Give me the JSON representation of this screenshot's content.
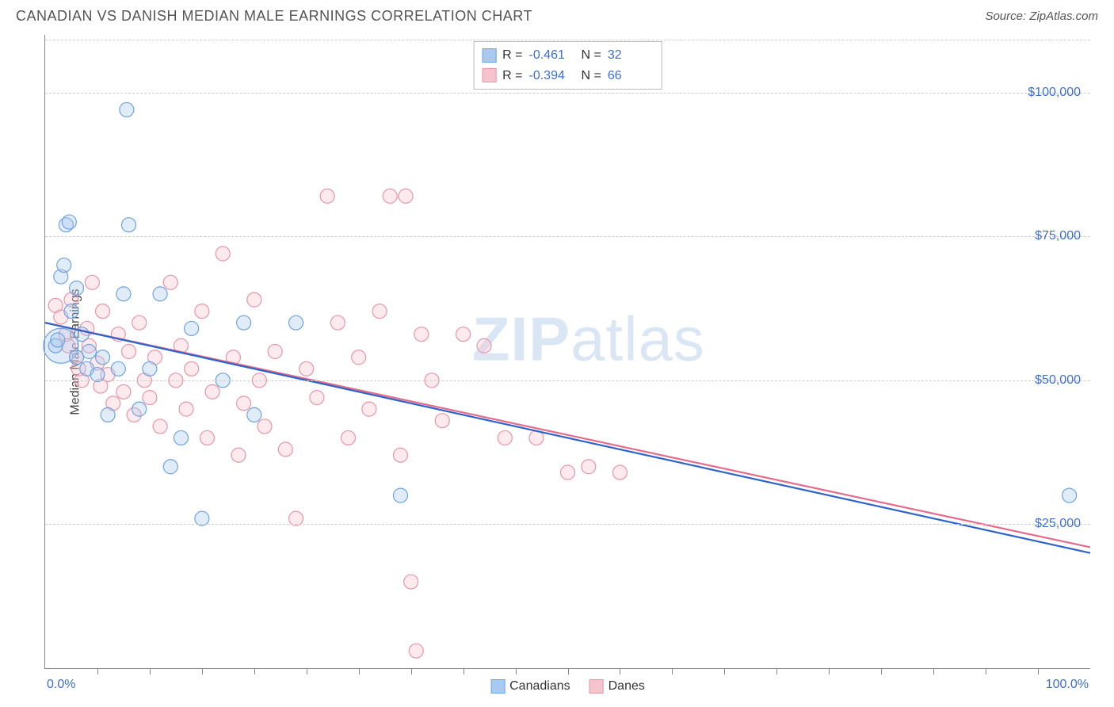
{
  "header": {
    "title": "CANADIAN VS DANISH MEDIAN MALE EARNINGS CORRELATION CHART",
    "source": "Source: ZipAtlas.com"
  },
  "chart": {
    "type": "scatter",
    "ylabel": "Median Male Earnings",
    "xlim": [
      0,
      100
    ],
    "ylim": [
      0,
      110000
    ],
    "y_gridlines": [
      25000,
      50000,
      75000,
      100000
    ],
    "y_tick_labels": [
      "$25,000",
      "$50,000",
      "$75,000",
      "$100,000"
    ],
    "x_minor_ticks": [
      5,
      10,
      15,
      20,
      25,
      30,
      35,
      40,
      45,
      50,
      55,
      60,
      65,
      70,
      75,
      80,
      85,
      90,
      95
    ],
    "x_min_label": "0.0%",
    "x_max_label": "100.0%",
    "background_color": "#ffffff",
    "grid_color": "#cccccc",
    "axis_color": "#888888",
    "watermark": {
      "text_bold": "ZIP",
      "text_rest": "atlas",
      "color": "#dbe6f5"
    },
    "marker_radius": 9,
    "marker_stroke_width": 1.2,
    "marker_fill_opacity": 0.35,
    "trend_line_width": 2.2,
    "series": [
      {
        "name": "Canadians",
        "color_fill": "#a9c9ef",
        "color_stroke": "#6fa3e0",
        "trend_color": "#2e63c9",
        "R": "-0.461",
        "N": "32",
        "trend": {
          "x1": 0,
          "y1": 60000,
          "x2": 100,
          "y2": 20000
        },
        "points": [
          [
            1,
            56000
          ],
          [
            1.2,
            57000
          ],
          [
            1.5,
            68000
          ],
          [
            1.8,
            70000
          ],
          [
            2,
            77000
          ],
          [
            2.3,
            77500
          ],
          [
            2.5,
            62000
          ],
          [
            3,
            66000
          ],
          [
            3,
            54000
          ],
          [
            3.5,
            58000
          ],
          [
            4,
            52000
          ],
          [
            4.2,
            55000
          ],
          [
            5,
            51000
          ],
          [
            5.5,
            54000
          ],
          [
            6,
            44000
          ],
          [
            7,
            52000
          ],
          [
            7.5,
            65000
          ],
          [
            7.8,
            97000
          ],
          [
            8,
            77000
          ],
          [
            9,
            45000
          ],
          [
            10,
            52000
          ],
          [
            11,
            65000
          ],
          [
            12,
            35000
          ],
          [
            13,
            40000
          ],
          [
            14,
            59000
          ],
          [
            15,
            26000
          ],
          [
            17,
            50000
          ],
          [
            19,
            60000
          ],
          [
            20,
            44000
          ],
          [
            24,
            60000
          ],
          [
            34,
            30000
          ],
          [
            98,
            30000
          ]
        ],
        "big_points": [
          [
            1.5,
            56000,
            22
          ]
        ]
      },
      {
        "name": "Danes",
        "color_fill": "#f6c4cf",
        "color_stroke": "#e895a8",
        "trend_color": "#e56b8a",
        "R": "-0.394",
        "N": "66",
        "trend": {
          "x1": 0,
          "y1": 60000,
          "x2": 100,
          "y2": 21000
        },
        "points": [
          [
            1,
            63000
          ],
          [
            1.5,
            61000
          ],
          [
            2,
            58000
          ],
          [
            2.2,
            56000
          ],
          [
            2.5,
            64000
          ],
          [
            3,
            54000
          ],
          [
            3.2,
            52000
          ],
          [
            3.5,
            50000
          ],
          [
            4,
            59000
          ],
          [
            4.2,
            56000
          ],
          [
            4.5,
            67000
          ],
          [
            5,
            53000
          ],
          [
            5.3,
            49000
          ],
          [
            5.5,
            62000
          ],
          [
            6,
            51000
          ],
          [
            6.5,
            46000
          ],
          [
            7,
            58000
          ],
          [
            7.5,
            48000
          ],
          [
            8,
            55000
          ],
          [
            8.5,
            44000
          ],
          [
            9,
            60000
          ],
          [
            9.5,
            50000
          ],
          [
            10,
            47000
          ],
          [
            10.5,
            54000
          ],
          [
            11,
            42000
          ],
          [
            12,
            67000
          ],
          [
            12.5,
            50000
          ],
          [
            13,
            56000
          ],
          [
            13.5,
            45000
          ],
          [
            14,
            52000
          ],
          [
            15,
            62000
          ],
          [
            15.5,
            40000
          ],
          [
            16,
            48000
          ],
          [
            17,
            72000
          ],
          [
            18,
            54000
          ],
          [
            18.5,
            37000
          ],
          [
            19,
            46000
          ],
          [
            20,
            64000
          ],
          [
            20.5,
            50000
          ],
          [
            21,
            42000
          ],
          [
            22,
            55000
          ],
          [
            23,
            38000
          ],
          [
            24,
            26000
          ],
          [
            25,
            52000
          ],
          [
            26,
            47000
          ],
          [
            27,
            82000
          ],
          [
            28,
            60000
          ],
          [
            29,
            40000
          ],
          [
            30,
            54000
          ],
          [
            31,
            45000
          ],
          [
            32,
            62000
          ],
          [
            33,
            82000
          ],
          [
            34,
            37000
          ],
          [
            34.5,
            82000
          ],
          [
            35,
            15000
          ],
          [
            35.5,
            3000
          ],
          [
            36,
            58000
          ],
          [
            37,
            50000
          ],
          [
            38,
            43000
          ],
          [
            40,
            58000
          ],
          [
            42,
            56000
          ],
          [
            44,
            40000
          ],
          [
            47,
            40000
          ],
          [
            50,
            34000
          ],
          [
            52,
            35000
          ],
          [
            55,
            34000
          ]
        ],
        "big_points": []
      }
    ],
    "bottom_legend": [
      {
        "label": "Canadians",
        "fill": "#a9c9ef",
        "stroke": "#6fa3e0"
      },
      {
        "label": "Danes",
        "fill": "#f6c4cf",
        "stroke": "#e895a8"
      }
    ]
  }
}
